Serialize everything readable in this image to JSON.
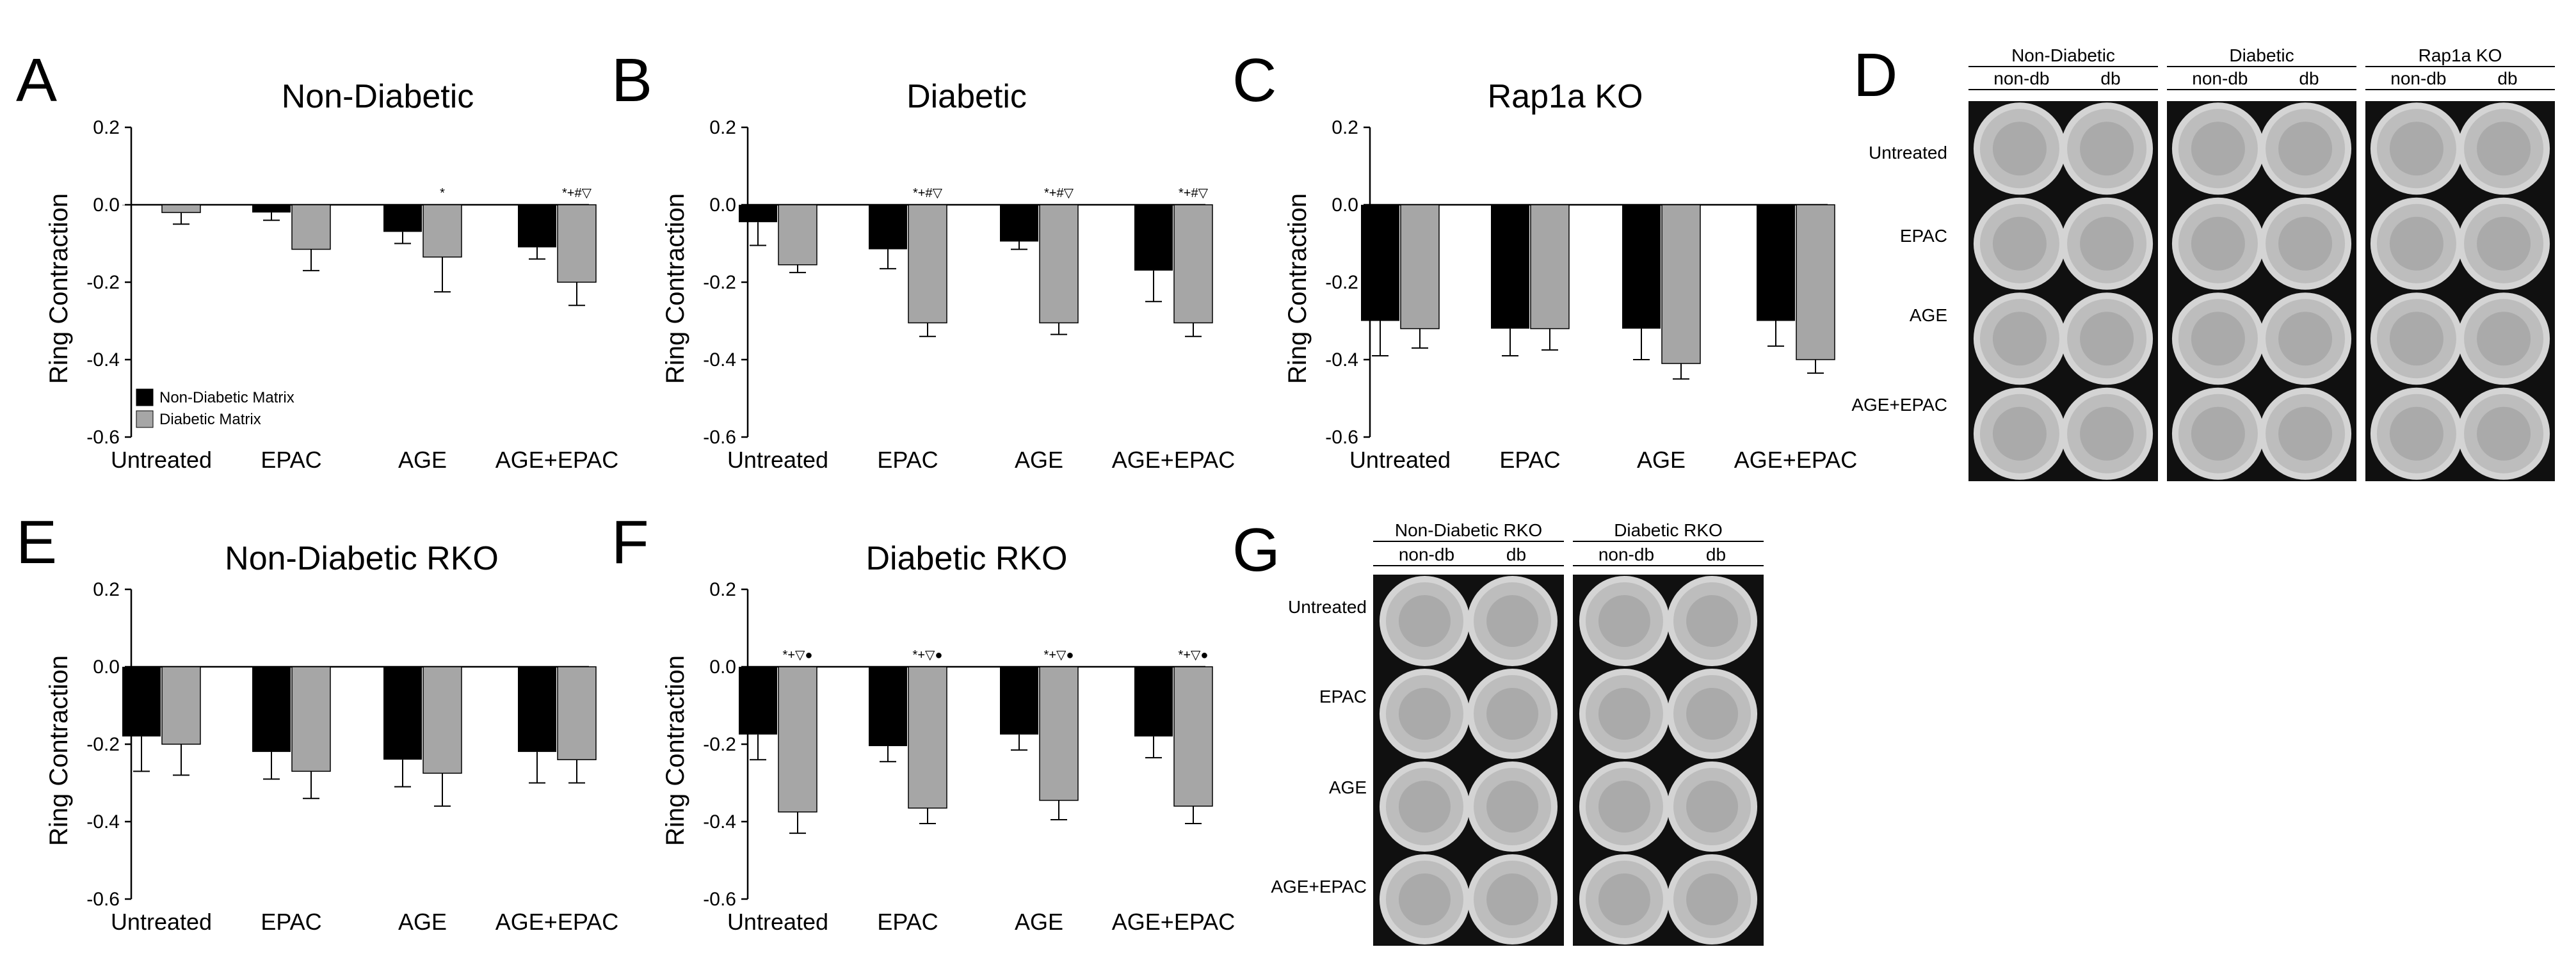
{
  "figure": {
    "colors": {
      "non_diabetic_matrix": "#000000",
      "diabetic_matrix": "#a6a6a6",
      "axis": "#000000",
      "plate_bg": "#101010",
      "well_fill": "#bdbdbd"
    }
  },
  "chart_data": [
    {
      "id": "A",
      "panel": "A",
      "type": "bar",
      "title": "Non-Diabetic",
      "ylabel": "Ring Contraction",
      "ylim": [
        -0.6,
        0.2
      ],
      "yticks": [
        0.2,
        0.0,
        -0.2,
        -0.4,
        -0.6
      ],
      "ytick_labels": [
        "0.2",
        "0.0",
        "-0.2",
        "-0.4",
        "-0.6"
      ],
      "categories": [
        "Untreated",
        "EPAC",
        "AGE",
        "AGE+EPAC"
      ],
      "series": [
        {
          "name": "Non-Diabetic Matrix",
          "color": "#000000",
          "values": [
            0.0,
            -0.02,
            -0.07,
            -0.11
          ],
          "errors": [
            0.0,
            0.02,
            0.03,
            0.03
          ]
        },
        {
          "name": "Diabetic Matrix",
          "color": "#a6a6a6",
          "values": [
            -0.02,
            -0.115,
            -0.135,
            -0.2
          ],
          "errors": [
            0.03,
            0.055,
            0.09,
            0.06
          ]
        }
      ],
      "annotations": [
        "",
        "",
        "*",
        "*+#▽"
      ],
      "legend": [
        "Non-Diabetic Matrix",
        "Diabetic Matrix"
      ]
    },
    {
      "id": "B",
      "panel": "B",
      "type": "bar",
      "title": "Diabetic",
      "ylabel": "Ring Contraction",
      "ylim": [
        -0.6,
        0.2
      ],
      "yticks": [
        0.2,
        0.0,
        -0.2,
        -0.4,
        -0.6
      ],
      "ytick_labels": [
        "0.2",
        "0.0",
        "-0.2",
        "-0.4",
        "-0.6"
      ],
      "categories": [
        "Untreated",
        "EPAC",
        "AGE",
        "AGE+EPAC"
      ],
      "series": [
        {
          "name": "Non-Diabetic Matrix",
          "color": "#000000",
          "values": [
            -0.045,
            -0.115,
            -0.095,
            -0.17
          ],
          "errors": [
            0.06,
            0.05,
            0.02,
            0.08
          ]
        },
        {
          "name": "Diabetic Matrix",
          "color": "#a6a6a6",
          "values": [
            -0.155,
            -0.305,
            -0.305,
            -0.305
          ],
          "errors": [
            0.02,
            0.035,
            0.03,
            0.035
          ]
        }
      ],
      "annotations": [
        "",
        "*+#▽",
        "*+#▽",
        "*+#▽"
      ]
    },
    {
      "id": "C",
      "panel": "C",
      "type": "bar",
      "title": "Rap1a KO",
      "ylabel": "Ring Contraction",
      "ylim": [
        -0.6,
        0.2
      ],
      "yticks": [
        0.2,
        0.0,
        -0.2,
        -0.4,
        -0.6
      ],
      "ytick_labels": [
        "0.2",
        "0.0",
        "-0.2",
        "-0.4",
        "-0.6"
      ],
      "categories": [
        "Untreated",
        "EPAC",
        "AGE",
        "AGE+EPAC"
      ],
      "series": [
        {
          "name": "Non-Diabetic Matrix",
          "color": "#000000",
          "values": [
            -0.3,
            -0.32,
            -0.32,
            -0.3
          ],
          "errors": [
            0.09,
            0.07,
            0.08,
            0.065
          ]
        },
        {
          "name": "Diabetic Matrix",
          "color": "#a6a6a6",
          "values": [
            -0.32,
            -0.32,
            -0.41,
            -0.4
          ],
          "errors": [
            0.05,
            0.055,
            0.04,
            0.035
          ]
        }
      ],
      "annotations": [
        "",
        "",
        "",
        ""
      ]
    },
    {
      "id": "E",
      "panel": "E",
      "type": "bar",
      "title": "Non-Diabetic RKO",
      "ylabel": "Ring Contraction",
      "ylim": [
        -0.6,
        0.2
      ],
      "yticks": [
        0.2,
        0.0,
        -0.2,
        -0.4,
        -0.6
      ],
      "ytick_labels": [
        "0.2",
        "0.0",
        "-0.2",
        "-0.4",
        "-0.6"
      ],
      "categories": [
        "Untreated",
        "EPAC",
        "AGE",
        "AGE+EPAC"
      ],
      "series": [
        {
          "name": "Non-Diabetic Matrix",
          "color": "#000000",
          "values": [
            -0.18,
            -0.22,
            -0.24,
            -0.22
          ],
          "errors": [
            0.09,
            0.07,
            0.07,
            0.08
          ]
        },
        {
          "name": "Diabetic Matrix",
          "color": "#a6a6a6",
          "values": [
            -0.2,
            -0.27,
            -0.275,
            -0.24
          ],
          "errors": [
            0.08,
            0.07,
            0.085,
            0.06
          ]
        }
      ],
      "annotations": [
        "",
        "",
        "",
        ""
      ]
    },
    {
      "id": "F",
      "panel": "F",
      "type": "bar",
      "title": "Diabetic RKO",
      "ylabel": "Ring Contraction",
      "ylim": [
        -0.6,
        0.2
      ],
      "yticks": [
        0.2,
        0.0,
        -0.2,
        -0.4,
        -0.6
      ],
      "ytick_labels": [
        "0.2",
        "0.0",
        "-0.2",
        "-0.4",
        "-0.6"
      ],
      "categories": [
        "Untreated",
        "EPAC",
        "AGE",
        "AGE+EPAC"
      ],
      "series": [
        {
          "name": "Non-Diabetic Matrix",
          "color": "#000000",
          "values": [
            -0.175,
            -0.205,
            -0.175,
            -0.18
          ],
          "errors": [
            0.065,
            0.04,
            0.04,
            0.055
          ]
        },
        {
          "name": "Diabetic Matrix",
          "color": "#a6a6a6",
          "values": [
            -0.375,
            -0.365,
            -0.345,
            -0.36
          ],
          "errors": [
            0.055,
            0.04,
            0.05,
            0.045
          ]
        }
      ],
      "annotations": [
        "*+▽●",
        "*+▽●",
        "*+▽●",
        "*+▽●"
      ]
    }
  ],
  "plates": [
    {
      "id": "D",
      "panel": "D",
      "row_labels": [
        "Untreated",
        "EPAC",
        "AGE",
        "AGE+EPAC"
      ],
      "groups": [
        {
          "title": "Non-Diabetic",
          "cols": [
            "non-db",
            "db"
          ]
        },
        {
          "title": "Diabetic",
          "cols": [
            "non-db",
            "db"
          ]
        },
        {
          "title": "Rap1a KO",
          "cols": [
            "non-db",
            "db"
          ]
        }
      ]
    },
    {
      "id": "G",
      "panel": "G",
      "row_labels": [
        "Untreated",
        "EPAC",
        "AGE",
        "AGE+EPAC"
      ],
      "groups": [
        {
          "title": "Non-Diabetic RKO",
          "cols": [
            "non-db",
            "db"
          ]
        },
        {
          "title": "Diabetic RKO",
          "cols": [
            "non-db",
            "db"
          ]
        }
      ]
    }
  ]
}
